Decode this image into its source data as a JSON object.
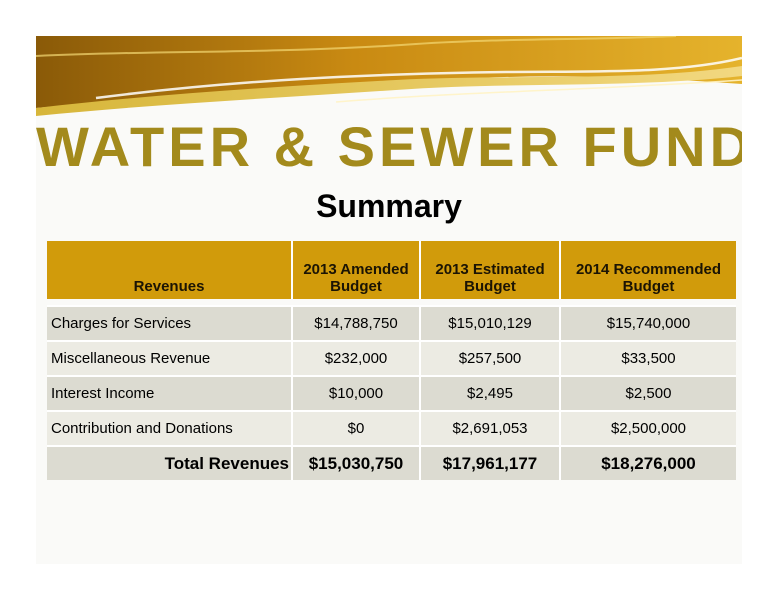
{
  "title": "WATER & SEWER FUND",
  "subtitle": "Summary",
  "table": {
    "headers": [
      "Revenues",
      "2013 Amended Budget",
      "2013 Estimated Budget",
      "2014 Recommended Budget"
    ],
    "rows": [
      {
        "label": "Charges for Services",
        "values": [
          "$14,788,750",
          "$15,010,129",
          "$15,740,000"
        ]
      },
      {
        "label": "Miscellaneous Revenue",
        "values": [
          "$232,000",
          "$257,500",
          "$33,500"
        ]
      },
      {
        "label": "Interest Income",
        "values": [
          "$10,000",
          "$2,495",
          "$2,500"
        ]
      },
      {
        "label": "Contribution and Donations",
        "values": [
          "$0",
          "$2,691,053",
          "$2,500,000"
        ]
      }
    ],
    "total": {
      "label": "Total Revenues",
      "values": [
        "$15,030,750",
        "$17,961,177",
        "$18,276,000"
      ]
    }
  },
  "colors": {
    "title_gold": "#a38a1c",
    "header_gold": "#d19b0b",
    "row_dark": "#dcdbd1",
    "row_light": "#ecebe3"
  }
}
